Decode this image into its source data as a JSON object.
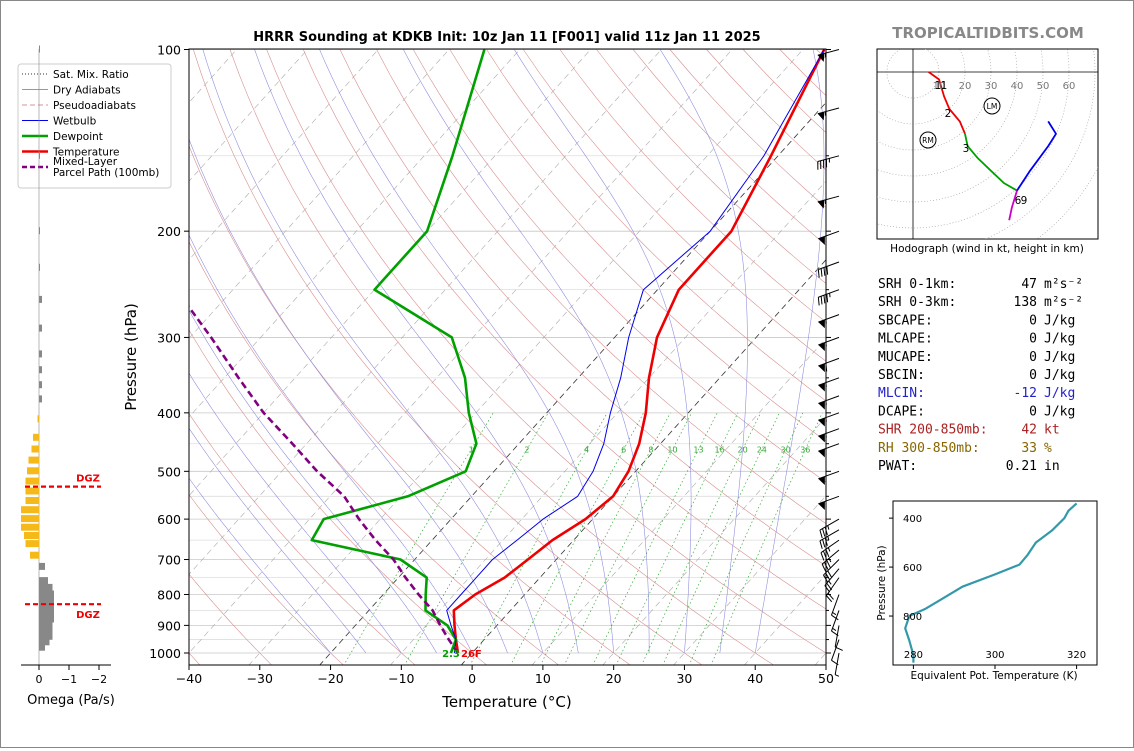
{
  "chart_data": [
    {
      "type": "skew-t",
      "title": "HRRR Sounding at KDKB Init: 10z Jan 11 [F001] valid 11z Jan 11 2025",
      "xlabel": "Temperature (°C)",
      "ylabel": "Pressure (hPa)",
      "xlim": [
        -40,
        50
      ],
      "ylim": [
        1000,
        100
      ],
      "y_scale": "log",
      "x_ticks": [
        "−40",
        "−30",
        "−20",
        "−10",
        "0",
        "10",
        "20",
        "30",
        "40",
        "50"
      ],
      "y_ticks": [
        "100",
        "200",
        "300",
        "400",
        "500",
        "600",
        "700",
        "800",
        "900",
        "1000"
      ],
      "legend": {
        "placement": "top-left",
        "entries": [
          {
            "label": "Sat. Mix. Ratio",
            "color": "#333333",
            "style": "dotted"
          },
          {
            "label": "Dry Adiabats",
            "color": "#d08080",
            "style": "solid"
          },
          {
            "label": "Pseudoadiabats",
            "color": "#c0c0c0",
            "style": "dashed"
          },
          {
            "label": "Wetbulb",
            "color": "#0000ee",
            "style": "solid"
          },
          {
            "label": "Dewpoint",
            "color": "#00a000",
            "style": "solid"
          },
          {
            "label": "Temperature",
            "color": "#ee0000",
            "style": "solid"
          },
          {
            "label": "Mixed-Layer\nParcel Path (100mb)",
            "color": "#800080",
            "style": "dashed"
          }
        ]
      },
      "mixing_ratio_labels": [
        "1",
        "2",
        "4",
        "6",
        "8",
        "10",
        "13",
        "16",
        "20",
        "24",
        "30",
        "36"
      ],
      "surface_label": {
        "dewpoint": "2.3",
        "temperature": "26F"
      },
      "series": [
        {
          "name": "Temperature",
          "color": "#ee0000",
          "points": [
            [
              -2,
              1000
            ],
            [
              -4,
              950
            ],
            [
              -6,
              900
            ],
            [
              -8,
              850
            ],
            [
              -7,
              800
            ],
            [
              -5,
              750
            ],
            [
              -4,
              700
            ],
            [
              -3,
              650
            ],
            [
              -1,
              600
            ],
            [
              0,
              550
            ],
            [
              -1,
              500
            ],
            [
              -3,
              450
            ],
            [
              -6,
              400
            ],
            [
              -10,
              350
            ],
            [
              -14,
              300
            ],
            [
              -17,
              250
            ],
            [
              -17,
              200
            ],
            [
              -21,
              150
            ],
            [
              -27,
              100
            ]
          ]
        },
        {
          "name": "Dewpoint",
          "color": "#00a000",
          "points": [
            [
              -3,
              1000
            ],
            [
              -4,
              950
            ],
            [
              -7,
              900
            ],
            [
              -12,
              850
            ],
            [
              -14,
              800
            ],
            [
              -16,
              750
            ],
            [
              -22,
              700
            ],
            [
              -37,
              650
            ],
            [
              -38,
              600
            ],
            [
              -29,
              550
            ],
            [
              -24,
              500
            ],
            [
              -26,
              450
            ],
            [
              -31,
              400
            ],
            [
              -36,
              350
            ],
            [
              -43,
              300
            ],
            [
              -60,
              250
            ],
            [
              -60,
              200
            ],
            [
              -66,
              150
            ],
            [
              -75,
              100
            ]
          ]
        },
        {
          "name": "Wetbulb",
          "color": "#0000ee",
          "points": [
            [
              -2.5,
              1000
            ],
            [
              -4,
              950
            ],
            [
              -6.5,
              900
            ],
            [
              -9,
              850
            ],
            [
              -9,
              800
            ],
            [
              -9,
              750
            ],
            [
              -9,
              700
            ],
            [
              -8,
              650
            ],
            [
              -7,
              600
            ],
            [
              -5,
              550
            ],
            [
              -6,
              500
            ],
            [
              -8,
              450
            ],
            [
              -11,
              400
            ],
            [
              -14,
              350
            ],
            [
              -18,
              300
            ],
            [
              -22,
              250
            ],
            [
              -20,
              200
            ],
            [
              -22,
              150
            ],
            [
              -27,
              100
            ]
          ]
        },
        {
          "name": "Mixed-Layer Parcel Path (100mb)",
          "color": "#800080",
          "points": [
            [
              -2,
              1000
            ],
            [
              -5,
              950
            ],
            [
              -8,
              900
            ],
            [
              -11,
              850
            ],
            [
              -15,
              800
            ],
            [
              -19,
              750
            ],
            [
              -23,
              700
            ],
            [
              -28,
              650
            ],
            [
              -33,
              600
            ],
            [
              -38,
              550
            ],
            [
              -45,
              500
            ],
            [
              -52,
              450
            ],
            [
              -60,
              400
            ],
            [
              -68,
              350
            ],
            [
              -77,
              300
            ],
            [
              -88,
              250
            ]
          ]
        }
      ]
    },
    {
      "type": "bar",
      "xlabel": "Omega (Pa/s)",
      "x_ticks": [
        "0",
        "−1",
        "−2"
      ],
      "labels": [
        "DGZ",
        "DGZ"
      ],
      "dgz_bounds_hpa": [
        530,
        830
      ],
      "pressure": [
        100,
        150,
        200,
        230,
        260,
        290,
        320,
        340,
        360,
        380,
        410,
        440,
        460,
        480,
        500,
        520,
        540,
        560,
        580,
        600,
        620,
        640,
        660,
        690,
        720,
        760,
        780,
        800,
        820,
        840,
        860,
        880,
        900,
        920,
        940,
        960,
        980
      ],
      "omega": [
        0.01,
        0.01,
        0.02,
        0.02,
        0.1,
        0.1,
        0.1,
        0.1,
        0.1,
        0.1,
        -0.05,
        -0.2,
        -0.25,
        -0.35,
        -0.4,
        -0.45,
        -0.45,
        -0.45,
        -0.6,
        -0.6,
        -0.6,
        -0.5,
        -0.45,
        -0.3,
        0.2,
        0.3,
        0.45,
        0.5,
        0.5,
        0.5,
        0.5,
        0.5,
        0.45,
        0.45,
        0.45,
        0.35,
        0.2
      ]
    },
    {
      "type": "line",
      "xlabel": "Equivalent Pot. Temperature (K)",
      "ylabel": "Pressure (hPa)",
      "x_ticks": [
        "280",
        "300",
        "320"
      ],
      "y_ticks": [
        "400",
        "600",
        "800"
      ],
      "xlim": [
        275,
        325
      ],
      "ylim": [
        1000,
        330
      ],
      "color": "#3399aa",
      "points": [
        [
          280,
          990
        ],
        [
          280,
          960
        ],
        [
          279,
          900
        ],
        [
          278,
          850
        ],
        [
          279,
          800
        ],
        [
          283,
          770
        ],
        [
          287,
          730
        ],
        [
          292,
          680
        ],
        [
          300,
          630
        ],
        [
          306,
          590
        ],
        [
          308,
          550
        ],
        [
          310,
          500
        ],
        [
          314,
          450
        ],
        [
          317,
          400
        ],
        [
          318,
          370
        ],
        [
          320,
          340
        ]
      ]
    },
    {
      "type": "hodograph",
      "title": "Hodograph (wind in kt, height in km)",
      "ring_labels": [
        "10",
        "20",
        "30",
        "40",
        "50",
        "60"
      ],
      "height_labels": [
        "1",
        "1",
        "2",
        "3",
        "6",
        "9"
      ],
      "markers": [
        "RM",
        "LM"
      ],
      "segments": [
        {
          "color": "#ee0000",
          "points": [
            [
              6,
              0
            ],
            [
              10,
              -3
            ],
            [
              12,
              -10
            ],
            [
              14,
              -15
            ],
            [
              18,
              -20
            ],
            [
              20,
              -25
            ]
          ]
        },
        {
          "color": "#00a000",
          "points": [
            [
              20,
              -25
            ],
            [
              21,
              -30
            ],
            [
              25,
              -35
            ],
            [
              30,
              -40
            ],
            [
              35,
              -45
            ],
            [
              40,
              -48
            ]
          ]
        },
        {
          "color": "#0000ee",
          "points": [
            [
              40,
              -48
            ],
            [
              45,
              -40
            ],
            [
              52,
              -30
            ],
            [
              55,
              -25
            ],
            [
              52,
              -20
            ]
          ]
        },
        {
          "color": "#cc00cc",
          "points": [
            [
              40,
              -48
            ],
            [
              38,
              -55
            ],
            [
              37,
              -60
            ]
          ]
        }
      ]
    }
  ],
  "branding": {
    "site": "TROPICALTIDBITS.COM"
  },
  "indices": [
    {
      "label": "SRH 0-1km:",
      "value": "47",
      "unit": "m²s⁻²",
      "color": "#000000"
    },
    {
      "label": "SRH 0-3km:",
      "value": "138",
      "unit": "m²s⁻²",
      "color": "#000000"
    },
    {
      "label": "SBCAPE:",
      "value": "0",
      "unit": "J/kg",
      "color": "#000000"
    },
    {
      "label": "MLCAPE:",
      "value": "0",
      "unit": "J/kg",
      "color": "#000000"
    },
    {
      "label": "MUCAPE:",
      "value": "0",
      "unit": "J/kg",
      "color": "#000000"
    },
    {
      "label": "SBCIN:",
      "value": "0",
      "unit": "J/kg",
      "color": "#000000"
    },
    {
      "label": "MLCIN:",
      "value": "-12",
      "unit": "J/kg",
      "color": "#2222cc"
    },
    {
      "label": "DCAPE:",
      "value": "0",
      "unit": "J/kg",
      "color": "#000000"
    },
    {
      "label": "SHR 200-850mb:",
      "value": "42",
      "unit": "kt",
      "color": "#aa2222"
    },
    {
      "label": "RH 300-850mb:",
      "value": "33",
      "unit": "%",
      "color": "#886600"
    },
    {
      "label": "PWAT:",
      "value": "0.21",
      "unit": "in",
      "color": "#000000"
    }
  ],
  "wind_barbs": [
    {
      "p": 100,
      "dir": 255,
      "kt": 55
    },
    {
      "p": 125,
      "dir": 255,
      "kt": 55
    },
    {
      "p": 150,
      "dir": 255,
      "kt": 45
    },
    {
      "p": 175,
      "dir": 255,
      "kt": 55
    },
    {
      "p": 200,
      "dir": 250,
      "kt": 50
    },
    {
      "p": 225,
      "dir": 250,
      "kt": 40
    },
    {
      "p": 250,
      "dir": 250,
      "kt": 45
    },
    {
      "p": 275,
      "dir": 250,
      "kt": 55
    },
    {
      "p": 300,
      "dir": 250,
      "kt": 55
    },
    {
      "p": 325,
      "dir": 250,
      "kt": 60
    },
    {
      "p": 350,
      "dir": 250,
      "kt": 55
    },
    {
      "p": 375,
      "dir": 250,
      "kt": 55
    },
    {
      "p": 400,
      "dir": 250,
      "kt": 55
    },
    {
      "p": 425,
      "dir": 250,
      "kt": 55
    },
    {
      "p": 450,
      "dir": 250,
      "kt": 50
    },
    {
      "p": 500,
      "dir": 250,
      "kt": 50
    },
    {
      "p": 550,
      "dir": 250,
      "kt": 50
    },
    {
      "p": 600,
      "dir": 240,
      "kt": 35
    },
    {
      "p": 625,
      "dir": 240,
      "kt": 35
    },
    {
      "p": 650,
      "dir": 235,
      "kt": 35
    },
    {
      "p": 675,
      "dir": 230,
      "kt": 35
    },
    {
      "p": 700,
      "dir": 225,
      "kt": 30
    },
    {
      "p": 725,
      "dir": 220,
      "kt": 25
    },
    {
      "p": 750,
      "dir": 215,
      "kt": 20
    },
    {
      "p": 800,
      "dir": 200,
      "kt": 15
    },
    {
      "p": 850,
      "dir": 200,
      "kt": 15
    },
    {
      "p": 900,
      "dir": 190,
      "kt": 10
    },
    {
      "p": 950,
      "dir": 200,
      "kt": 10
    },
    {
      "p": 1000,
      "dir": 190,
      "kt": 5
    }
  ]
}
